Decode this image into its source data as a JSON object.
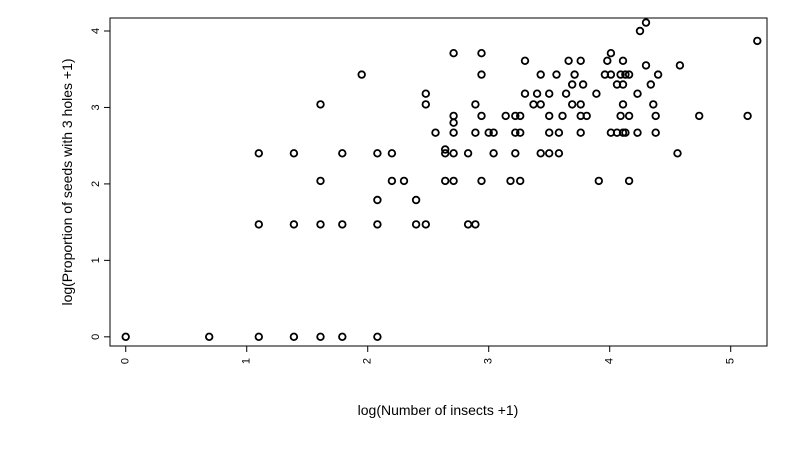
{
  "chart_data": {
    "type": "scatter",
    "title": "",
    "xlabel": "log(Number of insects +1)",
    "ylabel": "log(Proportion of seeds with 3 holes +1)",
    "xlim": [
      -0.13,
      5.3
    ],
    "ylim": [
      -0.12,
      4.17
    ],
    "x_ticks": [
      0,
      1,
      2,
      3,
      4,
      5
    ],
    "y_ticks": [
      0,
      1,
      2,
      3,
      4
    ],
    "x_tick_labels": [
      "0",
      "1",
      "2",
      "3",
      "4",
      "5"
    ],
    "y_tick_labels": [
      "0",
      "1",
      "2",
      "3",
      "4"
    ],
    "marker": "open-circle",
    "marker_color": "#000000",
    "grid": false,
    "points": [
      [
        0,
        0
      ],
      [
        0.69,
        0
      ],
      [
        1.1,
        0
      ],
      [
        1.39,
        0
      ],
      [
        1.61,
        0
      ],
      [
        1.79,
        0
      ],
      [
        2.08,
        0
      ],
      [
        1.1,
        1.47
      ],
      [
        1.39,
        1.47
      ],
      [
        1.61,
        1.47
      ],
      [
        1.79,
        1.47
      ],
      [
        2.08,
        1.47
      ],
      [
        2.4,
        1.47
      ],
      [
        2.48,
        1.47
      ],
      [
        2.83,
        1.47
      ],
      [
        2.89,
        1.47
      ],
      [
        2.08,
        1.79
      ],
      [
        2.4,
        1.79
      ],
      [
        1.1,
        2.4
      ],
      [
        1.39,
        2.4
      ],
      [
        1.79,
        2.4
      ],
      [
        2.08,
        2.4
      ],
      [
        2.2,
        2.4
      ],
      [
        2.64,
        2.4
      ],
      [
        2.71,
        2.4
      ],
      [
        2.83,
        2.4
      ],
      [
        3.04,
        2.4
      ],
      [
        3.22,
        2.4
      ],
      [
        3.43,
        2.4
      ],
      [
        3.5,
        2.4
      ],
      [
        3.58,
        2.4
      ],
      [
        4.56,
        2.4
      ],
      [
        1.61,
        2.04
      ],
      [
        2.2,
        2.04
      ],
      [
        2.3,
        2.04
      ],
      [
        2.64,
        2.04
      ],
      [
        2.71,
        2.04
      ],
      [
        2.94,
        2.04
      ],
      [
        3.18,
        2.04
      ],
      [
        3.26,
        2.04
      ],
      [
        3.91,
        2.04
      ],
      [
        4.16,
        2.04
      ],
      [
        2.64,
        2.45
      ],
      [
        2.71,
        2.67
      ],
      [
        2.89,
        2.67
      ],
      [
        3.0,
        2.67
      ],
      [
        3.04,
        2.67
      ],
      [
        3.22,
        2.67
      ],
      [
        3.26,
        2.67
      ],
      [
        3.5,
        2.67
      ],
      [
        3.58,
        2.67
      ],
      [
        3.76,
        2.67
      ],
      [
        4.01,
        2.67
      ],
      [
        4.06,
        2.67
      ],
      [
        4.11,
        2.67
      ],
      [
        4.13,
        2.67
      ],
      [
        4.23,
        2.67
      ],
      [
        4.38,
        2.67
      ],
      [
        2.56,
        2.67
      ],
      [
        2.71,
        2.8
      ],
      [
        2.71,
        2.89
      ],
      [
        2.94,
        2.89
      ],
      [
        3.14,
        2.89
      ],
      [
        3.22,
        2.89
      ],
      [
        3.26,
        2.89
      ],
      [
        3.5,
        2.89
      ],
      [
        3.61,
        2.89
      ],
      [
        3.76,
        2.89
      ],
      [
        3.81,
        2.89
      ],
      [
        4.09,
        2.89
      ],
      [
        4.16,
        2.89
      ],
      [
        4.38,
        2.89
      ],
      [
        4.74,
        2.89
      ],
      [
        5.14,
        2.89
      ],
      [
        1.61,
        3.04
      ],
      [
        2.48,
        3.04
      ],
      [
        2.89,
        3.04
      ],
      [
        3.37,
        3.04
      ],
      [
        3.43,
        3.04
      ],
      [
        3.69,
        3.04
      ],
      [
        3.76,
        3.04
      ],
      [
        4.11,
        3.04
      ],
      [
        4.36,
        3.04
      ],
      [
        2.48,
        3.18
      ],
      [
        3.3,
        3.18
      ],
      [
        3.4,
        3.18
      ],
      [
        3.5,
        3.18
      ],
      [
        3.64,
        3.18
      ],
      [
        3.89,
        3.18
      ],
      [
        4.23,
        3.18
      ],
      [
        3.69,
        3.3
      ],
      [
        3.78,
        3.3
      ],
      [
        4.06,
        3.3
      ],
      [
        4.11,
        3.3
      ],
      [
        4.34,
        3.3
      ],
      [
        1.95,
        3.43
      ],
      [
        2.94,
        3.43
      ],
      [
        3.43,
        3.43
      ],
      [
        3.56,
        3.43
      ],
      [
        3.71,
        3.43
      ],
      [
        3.96,
        3.43
      ],
      [
        4.01,
        3.43
      ],
      [
        4.09,
        3.43
      ],
      [
        4.13,
        3.43
      ],
      [
        4.16,
        3.43
      ],
      [
        4.4,
        3.43
      ],
      [
        3.3,
        3.61
      ],
      [
        3.66,
        3.61
      ],
      [
        3.76,
        3.61
      ],
      [
        3.98,
        3.61
      ],
      [
        4.11,
        3.61
      ],
      [
        4.3,
        3.55
      ],
      [
        4.58,
        3.55
      ],
      [
        2.71,
        3.71
      ],
      [
        2.94,
        3.71
      ],
      [
        4.01,
        3.71
      ],
      [
        4.25,
        4.0
      ],
      [
        4.3,
        4.11
      ],
      [
        5.22,
        3.87
      ]
    ]
  }
}
